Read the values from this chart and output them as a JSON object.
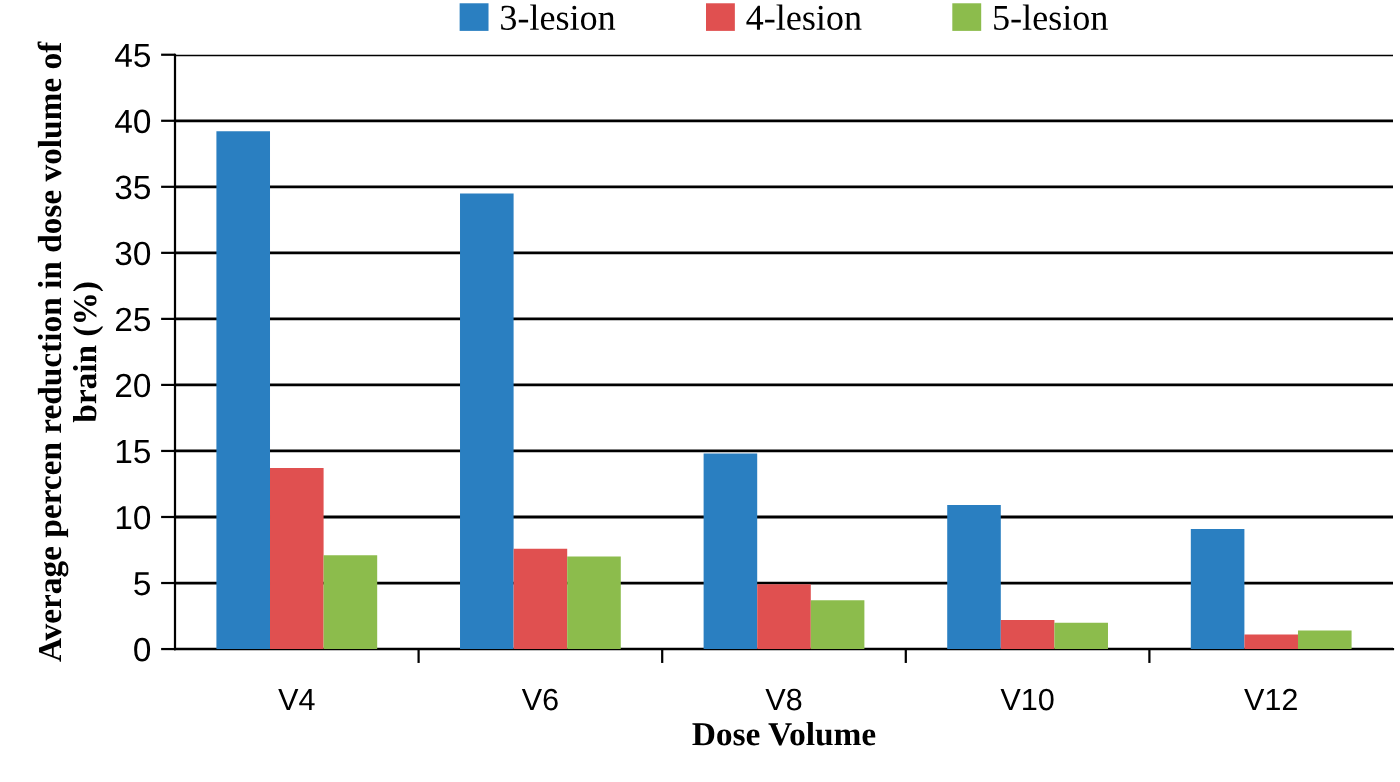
{
  "chart_data": {
    "type": "bar",
    "xlabel": "Dose Volume",
    "ylabel": "Average percen reduction in dose volume of brain (%)",
    "categories": [
      "V4",
      "V6",
      "V8",
      "V10",
      "V12"
    ],
    "series": [
      {
        "name": "3-lesion",
        "color": "#2a7fc1",
        "values": [
          39.2,
          34.5,
          14.8,
          10.9,
          9.1
        ]
      },
      {
        "name": "4-lesion",
        "color": "#e05050",
        "values": [
          13.7,
          7.6,
          4.9,
          2.2,
          1.1
        ]
      },
      {
        "name": "5-lesion",
        "color": "#8cbc4c",
        "values": [
          7.1,
          7.0,
          3.7,
          2.0,
          1.4
        ]
      }
    ],
    "ylim": [
      0,
      45
    ],
    "yticks": [
      0,
      5,
      10,
      15,
      20,
      25,
      30,
      35,
      40,
      45
    ],
    "grid": "y",
    "legend": "top"
  }
}
